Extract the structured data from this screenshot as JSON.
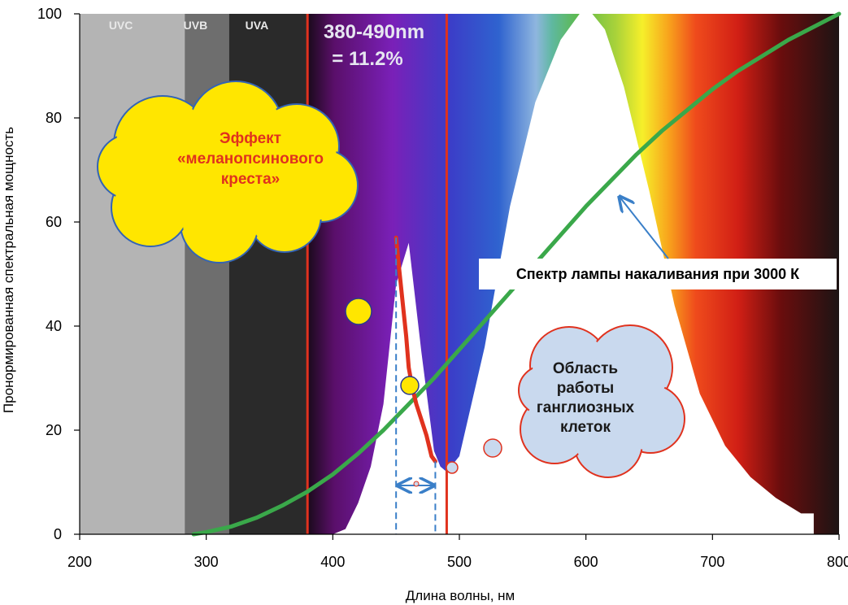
{
  "chart_data": {
    "type": "area",
    "title": "",
    "xlabel": "Длина волны, нм",
    "ylabel": "Пронормированная спектральная мощность",
    "xlim": [
      200,
      800
    ],
    "ylim": [
      0,
      100
    ],
    "x_ticks": [
      200,
      300,
      400,
      500,
      600,
      700,
      800
    ],
    "y_ticks": [
      0,
      20,
      40,
      60,
      80,
      100
    ],
    "colors": {
      "lamp_curve": "#3aa84a",
      "melanopsin_curve": "#e0321e",
      "cloud_yellow": "#ffe600",
      "cloud_blue": "#c9d9ee",
      "border_red": "#e0321e",
      "arrow_blue": "#3a7fc8"
    },
    "bands": [
      {
        "label": "UVC",
        "from": 200,
        "to": 283,
        "color": "#b4b4b4"
      },
      {
        "label": "UVB",
        "from": 283,
        "to": 318,
        "color": "#6e6e6e"
      },
      {
        "label": "UVA",
        "from": 318,
        "to": 380,
        "color": "#2a2a2a"
      }
    ],
    "range_label": {
      "line1": "380-490nm",
      "line2": "= 11.2%"
    },
    "range_lines": [
      380,
      490
    ],
    "spectrum_envelope": {
      "x": [
        380,
        390,
        400,
        410,
        420,
        430,
        440,
        450,
        460,
        470,
        480,
        485,
        490,
        500,
        520,
        540,
        560,
        580,
        595,
        605,
        615,
        630,
        650,
        670,
        690,
        710,
        730,
        750,
        770,
        780
      ],
      "y": [
        0,
        0,
        0,
        1,
        6,
        13,
        25,
        48,
        56,
        35,
        16,
        13,
        12,
        15,
        36,
        63,
        83,
        95,
        100,
        100,
        97,
        86,
        66,
        44,
        27,
        17,
        11,
        7,
        4,
        4
      ]
    },
    "series": [
      {
        "name": "Спектр лампы накаливания при 3000 К",
        "x": [
          290,
          300,
          320,
          340,
          360,
          380,
          400,
          420,
          440,
          460,
          480,
          500,
          520,
          540,
          560,
          580,
          600,
          620,
          640,
          660,
          680,
          700,
          720,
          740,
          760,
          780,
          800
        ],
        "y": [
          0,
          0.4,
          1.5,
          3.2,
          5.5,
          8.2,
          11.5,
          15.5,
          20,
          25,
          30,
          35.5,
          41,
          46.5,
          52,
          57.5,
          63,
          68,
          73,
          77.5,
          81.5,
          85.5,
          89,
          92,
          95,
          97.5,
          100
        ]
      },
      {
        "name": "",
        "x": [
          450,
          452,
          455,
          458,
          460,
          463,
          466,
          470,
          474,
          478,
          481
        ],
        "y": [
          57,
          52,
          45,
          38,
          32,
          28,
          25,
          22,
          19,
          15,
          14
        ]
      }
    ],
    "annotations": {
      "melanopsin_cloud": [
        "Эффект",
        "«меланопсинового",
        "креста»"
      ],
      "ganglion_cloud": [
        "Область",
        "работы",
        "ганглиозных",
        "клеток"
      ],
      "lamp_label": "Спектр лампы накаливания при 3000 К"
    }
  }
}
